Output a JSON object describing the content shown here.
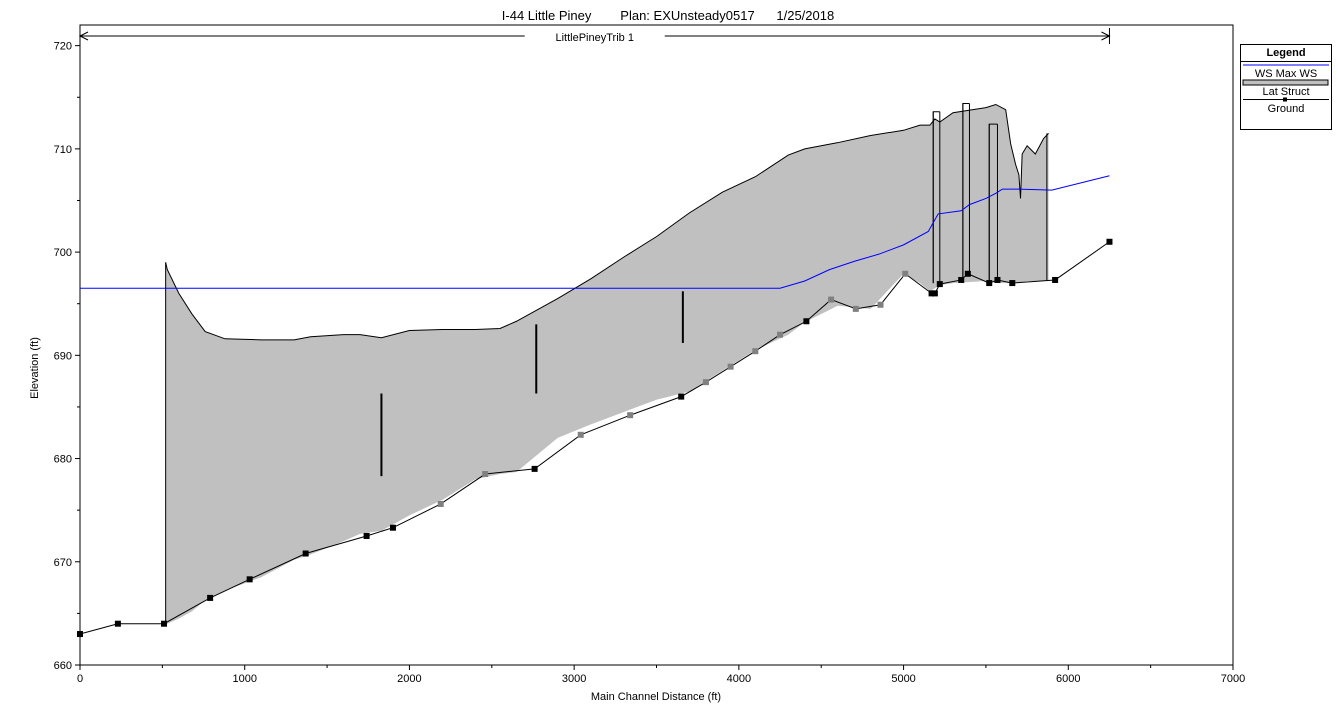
{
  "chart_data": {
    "type": "line",
    "title": "I-44 Little Piney        Plan: EXUnsteady0517      1/25/2018",
    "reach_label": "LittlePineyTrib 1",
    "xlabel": "Main Channel Distance (ft)",
    "ylabel": "Elevation (ft)",
    "xlim": [
      0,
      7000
    ],
    "ylim": [
      660,
      722
    ],
    "x_ticks": [
      0,
      1000,
      2000,
      3000,
      4000,
      5000,
      6000,
      7000
    ],
    "y_ticks": [
      660,
      670,
      680,
      690,
      700,
      710,
      720
    ],
    "reach_extent": [
      0,
      6250
    ],
    "legend": {
      "title": "Legend",
      "position": "top-right",
      "items": [
        "WS  Max WS",
        "Lat Struct",
        "Ground"
      ]
    },
    "colors": {
      "ws": "#0000ff",
      "lat_struct_fill": "#c0c0c0",
      "ground": "#000000",
      "ground_marker_grey": "#808080"
    },
    "series": [
      {
        "name": "WS  Max WS",
        "x": [
          0,
          4250,
          4400,
          4550,
          4700,
          4850,
          5000,
          5150,
          5210,
          5350,
          5400,
          5500,
          5560,
          5600,
          5700,
          5900,
          6250
        ],
        "y": [
          696.5,
          696.5,
          697.2,
          698.3,
          699.1,
          699.8,
          700.7,
          702.0,
          703.7,
          704.0,
          704.6,
          705.2,
          705.7,
          706.1,
          706.1,
          706.0,
          707.4
        ]
      },
      {
        "name": "Lat Struct",
        "x": [
          520,
          530,
          600,
          680,
          760,
          880,
          1100,
          1300,
          1400,
          1600,
          1700,
          1830,
          2000,
          2200,
          2400,
          2550,
          2650,
          2900,
          3100,
          3300,
          3500,
          3700,
          3900,
          4100,
          4300,
          4400,
          4600,
          4800,
          5000,
          5100,
          5160,
          5190,
          5220,
          5300,
          5500,
          5560,
          5620,
          5650,
          5680,
          5700,
          5710,
          5720,
          5750,
          5800,
          5850,
          5880
        ],
        "y_top": [
          699.0,
          698.3,
          696.0,
          694.0,
          692.3,
          691.6,
          691.5,
          691.5,
          691.8,
          692.0,
          692.0,
          691.7,
          692.4,
          692.5,
          692.5,
          692.6,
          693.3,
          695.5,
          697.4,
          699.5,
          701.5,
          703.8,
          705.8,
          707.3,
          709.4,
          710.0,
          710.6,
          711.3,
          711.8,
          712.3,
          712.3,
          712.9,
          712.6,
          713.5,
          714.0,
          714.3,
          713.8,
          710.5,
          708.5,
          707.5,
          705.2,
          709.5,
          710.3,
          709.5,
          711.0,
          711.5
        ],
        "y_bottom": [
          664.0,
          664.0,
          664.5,
          665.2,
          666.3,
          667.2,
          668.5,
          670.2,
          670.7,
          672.0,
          672.7,
          673.0,
          674.5,
          676.0,
          678.0,
          678.5,
          678.7,
          682.0,
          683.3,
          684.5,
          685.7,
          686.5,
          688.5,
          690.5,
          692.0,
          693.2,
          694.8,
          694.5,
          697.9,
          697.0,
          696.2,
          696.5,
          696.8,
          697.0,
          697.2,
          697.0,
          697.0,
          697.0,
          697.0,
          697.0,
          697.1,
          697.1,
          697.2,
          697.2,
          697.2,
          697.2
        ]
      },
      {
        "name": "Ground",
        "x": [
          0,
          230,
          510,
          790,
          1030,
          1370,
          1740,
          1900,
          2190,
          2460,
          2760,
          3040,
          3340,
          3650,
          3800,
          3950,
          4100,
          4250,
          4410,
          4560,
          4710,
          4860,
          5010,
          5170,
          5190,
          5220,
          5350,
          5390,
          5520,
          5570,
          5660,
          5920,
          6250
        ],
        "y": [
          663.0,
          664.0,
          664.0,
          666.5,
          668.3,
          670.8,
          672.5,
          673.3,
          675.6,
          678.5,
          679.0,
          682.3,
          684.2,
          686.0,
          687.4,
          688.9,
          690.4,
          692.0,
          693.3,
          695.4,
          694.5,
          694.9,
          697.9,
          696.0,
          696.0,
          696.9,
          697.3,
          697.9,
          697.0,
          697.3,
          697.0,
          697.3,
          701.0
        ],
        "grey_markers": [
          2190,
          2460,
          3040,
          3340,
          3800,
          3950,
          4100,
          4250,
          4560,
          4710,
          4860,
          5010
        ]
      }
    ],
    "structure_bars": [
      {
        "x": 1830,
        "y_low": 678.3,
        "y_high": 686.3
      },
      {
        "x": 2770,
        "y_low": 686.3,
        "y_high": 693.0
      },
      {
        "x": 3660,
        "y_low": 691.2,
        "y_high": 696.2
      }
    ],
    "wall_spikes": [
      {
        "x": 5180,
        "y_low": 697.0,
        "y_high": 713.6
      },
      {
        "x": 5220,
        "y_low": 696.8,
        "y_high": 713.6
      },
      {
        "x": 5360,
        "y_low": 697.2,
        "y_high": 714.4
      },
      {
        "x": 5400,
        "y_low": 697.9,
        "y_high": 714.4
      },
      {
        "x": 5520,
        "y_low": 697.0,
        "y_high": 712.4
      },
      {
        "x": 5570,
        "y_low": 697.3,
        "y_high": 712.4
      },
      {
        "x": 5870,
        "y_low": 697.2,
        "y_high": 711.5
      }
    ],
    "grid": false
  }
}
